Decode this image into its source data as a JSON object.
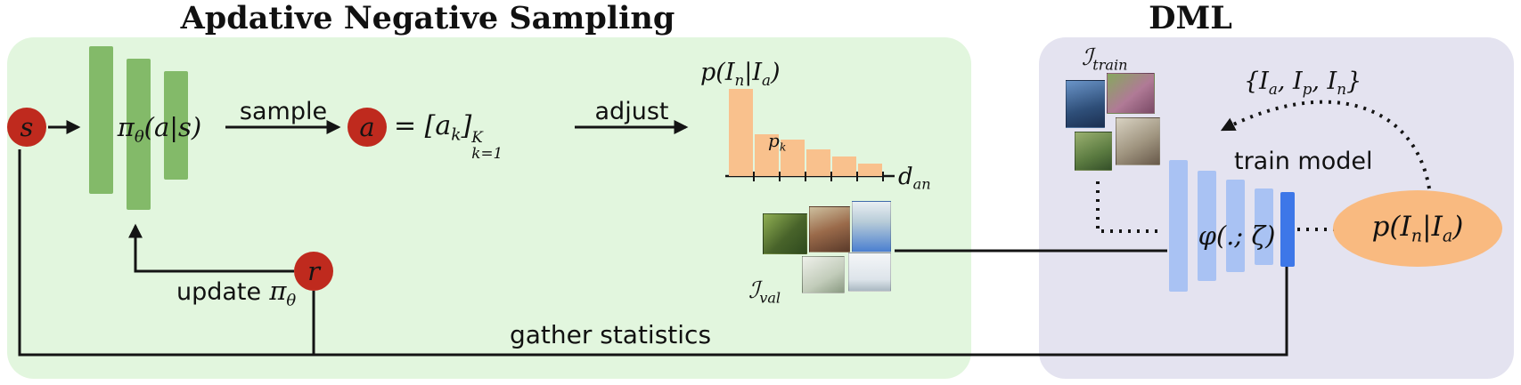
{
  "titles": {
    "left": "Apdative Negative Sampling",
    "right": "DML"
  },
  "labels": {
    "sample": "sample",
    "adjust": "adjust",
    "update": "update",
    "gather": "gather statistics",
    "train_model": "train model"
  },
  "nodes": {
    "state": "s",
    "action": "a",
    "reward": "r"
  },
  "math": {
    "policy": {
      "pi": "π",
      "theta": "θ",
      "args": "(a|s)"
    },
    "pi_theta": {
      "pi": "π",
      "theta": "θ"
    },
    "action_eq": {
      "eq": "= [",
      "a": "a",
      "k": "k",
      "close": "]",
      "sup": "K",
      "sub": "k=1"
    },
    "p_dist": {
      "p": "p(I",
      "n": "n",
      "bar": "|I",
      "a": "a",
      "close": ")"
    },
    "p_k": {
      "p": "p",
      "k": "k"
    },
    "d_an": {
      "d": "d",
      "an": "an"
    },
    "i_val": {
      "base": "ℐ",
      "sub": "val"
    },
    "i_train": {
      "base": "ℐ",
      "sub": "train"
    },
    "triplet": {
      "o": "{I",
      "a": "a",
      "c1": ", I",
      "p": "p",
      "c2": ", I",
      "n": "n",
      "c": "}"
    },
    "phi": "φ(.; ζ)"
  },
  "chart_data": {
    "type": "bar",
    "title": "p(I_n|I_a)",
    "xlabel": "d_an",
    "ylabel": "",
    "values": [
      1.0,
      0.48,
      0.42,
      0.31,
      0.22,
      0.14
    ],
    "categories": [
      "",
      "",
      "",
      "",
      "",
      ""
    ],
    "annotation": {
      "text": "p_k",
      "bar_index": 2
    },
    "bar_color": "#f9c18d",
    "axis_range_note": "unlabeled probability axis, x axis is anchor-negative distance"
  },
  "colors": {
    "green_panel": "#e2f6de",
    "purple_panel": "#e4e3f0",
    "policy_bar": "#83ba69",
    "node_red": "#bf2a1e",
    "hist_bar": "#f9c18d",
    "ellipse": "#f9ba80",
    "encoder_light": "#a9c2f3",
    "encoder_dark": "#3d77e8"
  }
}
